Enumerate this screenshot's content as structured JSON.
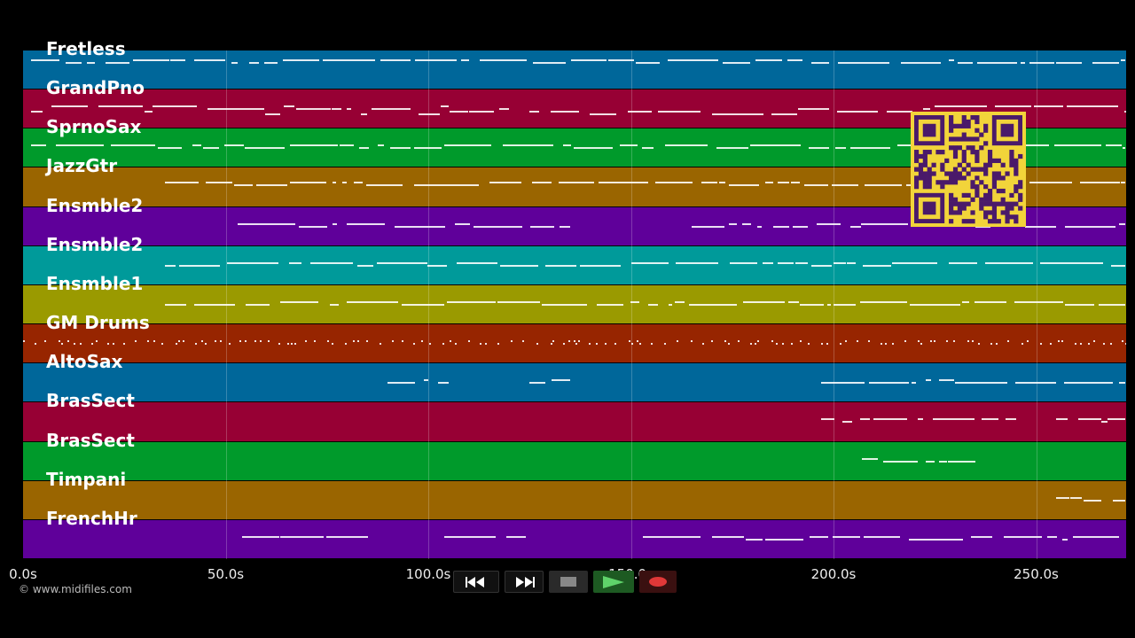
{
  "tracks": [
    {
      "name": "Fretless",
      "color": "#00679a"
    },
    {
      "name": "GrandPno",
      "color": "#970034"
    },
    {
      "name": "SprnoSax",
      "color": "#009a2b"
    },
    {
      "name": "JazzGtr",
      "color": "#9a6500"
    },
    {
      "name": "Ensmble2",
      "color": "#5f009a"
    },
    {
      "name": "Ensmble2",
      "color": "#009a9a"
    },
    {
      "name": "Ensmble1",
      "color": "#9a9a00"
    },
    {
      "name": "GM Drums",
      "color": "#972500"
    },
    {
      "name": "AltoSax",
      "color": "#00679a"
    },
    {
      "name": "BrasSect",
      "color": "#970034"
    },
    {
      "name": "BrasSect",
      "color": "#009a2b"
    },
    {
      "name": "Timpani",
      "color": "#9a6500"
    },
    {
      "name": "FrenchHr",
      "color": "#5f009a"
    }
  ],
  "timeline": {
    "ticks": [
      "0.0s",
      "50.0s",
      "100.0s",
      "150.0s",
      "200.0s",
      "250.0s"
    ]
  },
  "copyright": "© www.midifiles.com",
  "transport": {
    "rewind_icon": "rewind-icon",
    "forward_icon": "fast-forward-icon",
    "stop_icon": "stop-icon",
    "play_icon": "play-icon",
    "record_icon": "record-icon"
  },
  "qr_code": {
    "color": "#f2d43a",
    "fg": "#4a1a6a"
  }
}
